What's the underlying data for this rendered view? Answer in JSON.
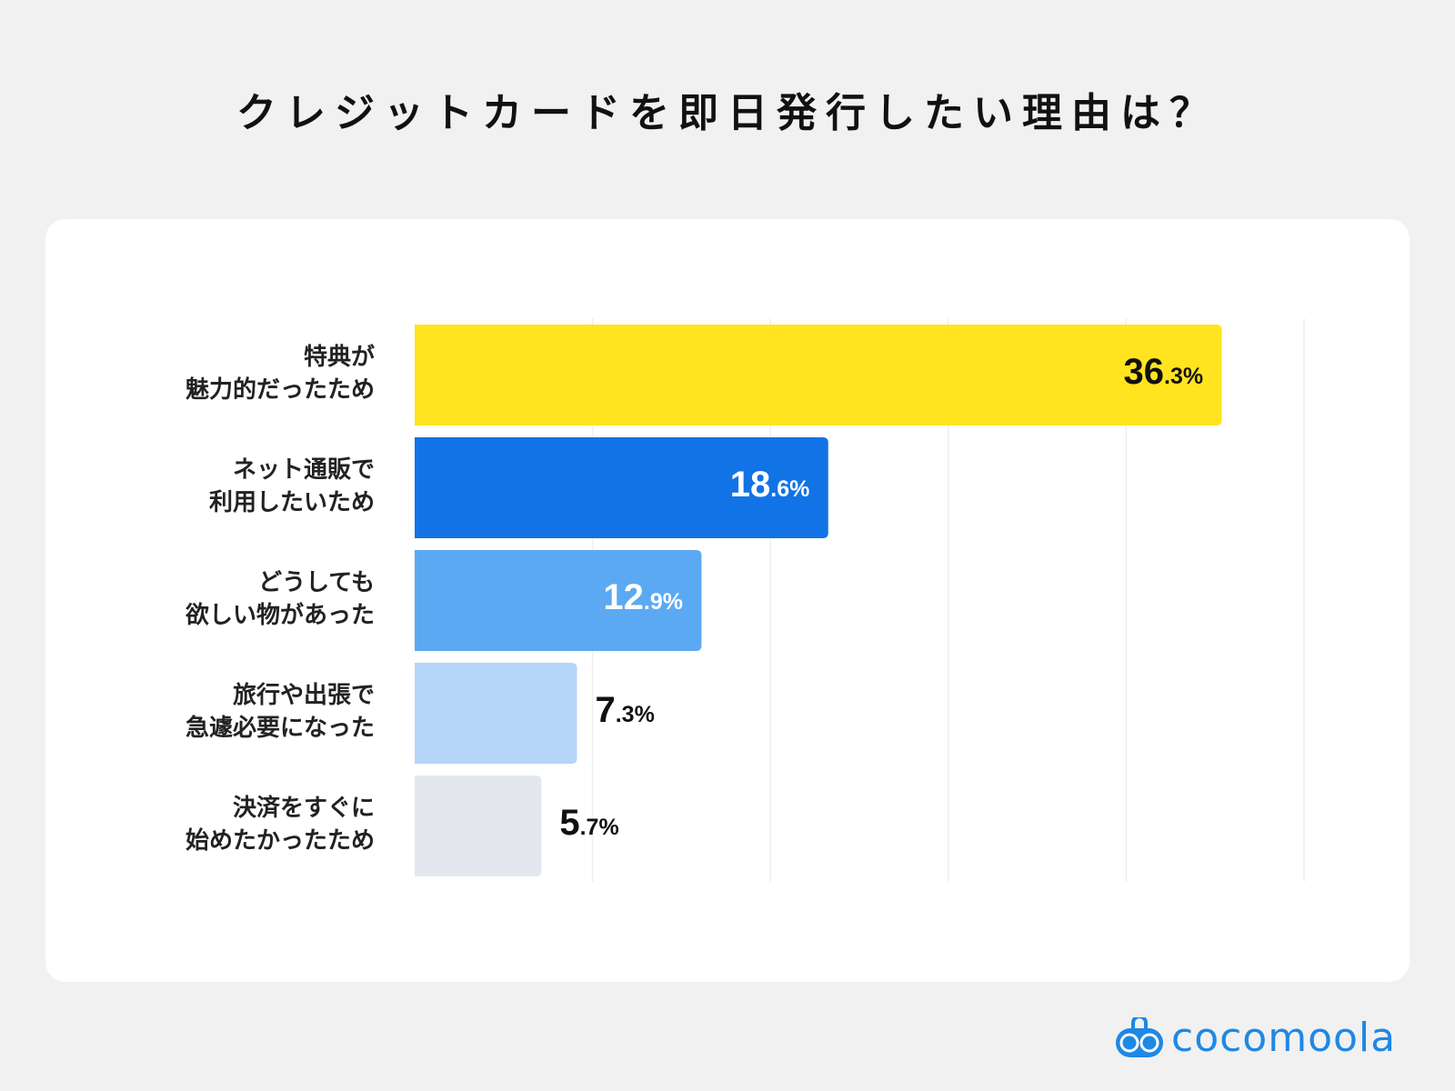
{
  "chart_data": {
    "type": "bar",
    "orientation": "horizontal",
    "title": "クレジットカードを即日発行したい理由は？",
    "categories": [
      [
        "特典が",
        "魅力的だったため"
      ],
      [
        "ネット通販で",
        "利用したいため"
      ],
      [
        "どうしても",
        "欲しい物があった"
      ],
      [
        "旅行や出張で",
        "急遽必要になった"
      ],
      [
        "決済をすぐに",
        "始めたかったため"
      ]
    ],
    "values": [
      36.3,
      18.6,
      12.9,
      7.3,
      5.7
    ],
    "value_labels": [
      [
        "36",
        ".3%"
      ],
      [
        "18",
        ".6%"
      ],
      [
        "12",
        ".9%"
      ],
      [
        "7",
        ".3%"
      ],
      [
        "5",
        ".7%"
      ]
    ],
    "colors": [
      "#ffe41f",
      "#1273e6",
      "#5ca9f3",
      "#b5d5f9",
      "#e4e8ee"
    ],
    "label_colors": [
      "#111111",
      "#ffffff",
      "#ffffff",
      "#111111",
      "#111111"
    ],
    "label_inside": [
      true,
      true,
      true,
      false,
      false
    ],
    "xlim": [
      0,
      40
    ],
    "grid_step": 8,
    "grid": true
  },
  "brand": {
    "name": "cocomoola",
    "color": "#1e88e5"
  }
}
